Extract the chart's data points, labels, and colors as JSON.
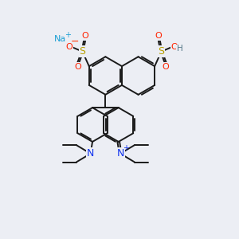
{
  "bg_color": "#eceef4",
  "bond_color": "#1a1a1a",
  "bond_width": 1.4,
  "atom_colors": {
    "Na": "#1a9fd4",
    "plus": "#1a9fd4",
    "minus": "#ff3300",
    "O": "#ff2200",
    "S": "#b8a000",
    "N": "#1133ee",
    "H": "#557788",
    "C": "#1a1a1a"
  },
  "fig_width": 3.0,
  "fig_height": 3.0,
  "xlim": [
    -5.0,
    5.0
  ],
  "ylim": [
    -5.0,
    4.5
  ]
}
